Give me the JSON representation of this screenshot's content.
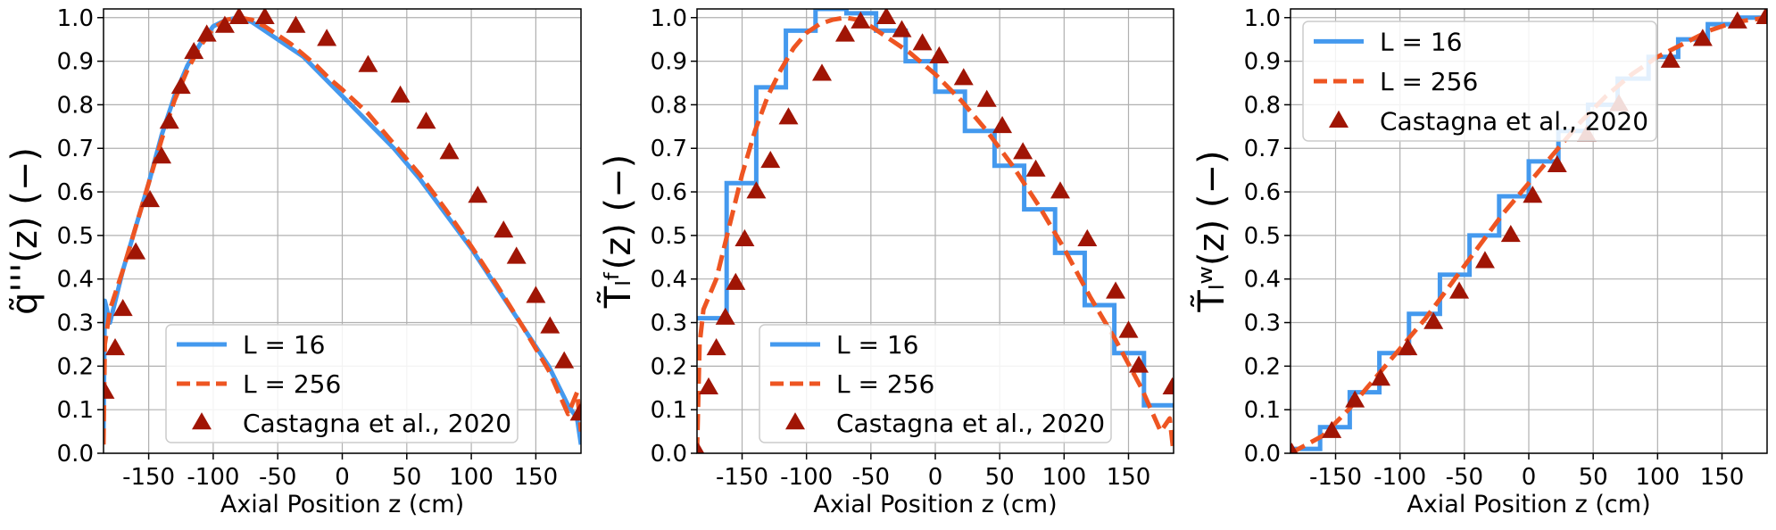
{
  "colors": {
    "l16": "#4499ee",
    "l256": "#ee5522",
    "castagna": "#a01505",
    "grid": "#b0b0b0"
  },
  "legend_labels": [
    "L = 16",
    "L = 256",
    "Castagna et al., 2020"
  ],
  "chart_data": [
    {
      "type": "line",
      "xlabel": "Axial Position z (cm)",
      "ylabel": "q̃'''(z) (−)",
      "xlim": [
        -185,
        185
      ],
      "ylim": [
        0,
        1.02
      ],
      "xticks": [
        "-150",
        "-100",
        "-50",
        "0",
        "50",
        "100",
        "150"
      ],
      "yticks": [
        "0.0",
        "0.1",
        "0.2",
        "0.3",
        "0.4",
        "0.5",
        "0.6",
        "0.7",
        "0.8",
        "0.9",
        "1.0"
      ],
      "grid": true,
      "legend_position": "lower-center",
      "series": [
        {
          "name": "L = 16",
          "style": "solid",
          "x": [
            -185,
            -184,
            -180,
            -170,
            -160,
            -150,
            -140,
            -130,
            -120,
            -110,
            -100,
            -90,
            -80,
            -70,
            -60,
            -50,
            -40,
            -30,
            -20,
            -10,
            0,
            20,
            40,
            60,
            80,
            100,
            120,
            140,
            160,
            175,
            182,
            185
          ],
          "y": [
            0.05,
            0.35,
            0.3,
            0.42,
            0.52,
            0.62,
            0.73,
            0.82,
            0.89,
            0.94,
            0.98,
            0.995,
            1.0,
            0.99,
            0.97,
            0.95,
            0.93,
            0.91,
            0.88,
            0.85,
            0.82,
            0.76,
            0.7,
            0.63,
            0.55,
            0.47,
            0.38,
            0.29,
            0.2,
            0.11,
            0.08,
            0.02
          ]
        },
        {
          "name": "L = 256",
          "style": "dashed",
          "x": [
            -185,
            -184,
            -180,
            -170,
            -160,
            -150,
            -140,
            -130,
            -120,
            -110,
            -100,
            -90,
            -80,
            -70,
            -60,
            -50,
            -40,
            -30,
            -20,
            -10,
            0,
            20,
            40,
            60,
            80,
            100,
            120,
            140,
            160,
            175,
            182,
            185
          ],
          "y": [
            0.02,
            0.25,
            0.33,
            0.42,
            0.52,
            0.62,
            0.72,
            0.81,
            0.88,
            0.935,
            0.975,
            0.995,
            1.0,
            0.995,
            0.98,
            0.96,
            0.94,
            0.915,
            0.89,
            0.86,
            0.835,
            0.78,
            0.71,
            0.64,
            0.56,
            0.475,
            0.385,
            0.29,
            0.19,
            0.09,
            0.14,
            0.05
          ]
        },
        {
          "name": "Castagna et al., 2020",
          "style": "markers",
          "x": [
            -184,
            -176,
            -170,
            -160,
            -149,
            -140,
            -134,
            -125,
            -115,
            -105,
            -91,
            -80,
            -60,
            -36,
            -12,
            20,
            45,
            65,
            83,
            105,
            125,
            135,
            150,
            161,
            172,
            184
          ],
          "y": [
            0.14,
            0.24,
            0.33,
            0.46,
            0.58,
            0.68,
            0.76,
            0.84,
            0.92,
            0.96,
            0.98,
            1.0,
            1.0,
            0.98,
            0.95,
            0.89,
            0.82,
            0.76,
            0.69,
            0.59,
            0.51,
            0.45,
            0.36,
            0.29,
            0.21,
            0.09
          ]
        }
      ]
    },
    {
      "type": "line",
      "xlabel": "Axial Position z (cm)",
      "ylabel": "T̃ₗᶠ(z) (−)",
      "xlim": [
        -185,
        185
      ],
      "ylim": [
        0,
        1.02
      ],
      "xticks": [
        "-150",
        "-100",
        "-50",
        "0",
        "50",
        "100",
        "150"
      ],
      "yticks": [
        "0.0",
        "0.1",
        "0.2",
        "0.3",
        "0.4",
        "0.5",
        "0.6",
        "0.7",
        "0.8",
        "0.9",
        "1.0"
      ],
      "grid": true,
      "legend_position": "lower-center",
      "series": [
        {
          "name": "L = 16",
          "style": "step",
          "edges": [
            -185,
            -162,
            -139,
            -116,
            -93,
            -69,
            -46,
            -23,
            0,
            23,
            46,
            69,
            93,
            116,
            139,
            162,
            185
          ],
          "y": [
            0.31,
            0.62,
            0.84,
            0.97,
            1.02,
            1.01,
            0.97,
            0.9,
            0.83,
            0.74,
            0.66,
            0.56,
            0.46,
            0.34,
            0.23,
            0.11
          ]
        },
        {
          "name": "L = 256",
          "style": "dashed",
          "x": [
            -185,
            -183,
            -180,
            -170,
            -160,
            -150,
            -140,
            -130,
            -120,
            -110,
            -100,
            -90,
            -80,
            -70,
            -60,
            -50,
            -40,
            -30,
            -20,
            -10,
            0,
            20,
            40,
            60,
            80,
            100,
            120,
            140,
            160,
            175,
            182,
            185
          ],
          "y": [
            0.0,
            0.25,
            0.33,
            0.4,
            0.52,
            0.64,
            0.74,
            0.82,
            0.88,
            0.93,
            0.965,
            0.985,
            0.995,
            1.0,
            0.995,
            0.98,
            0.96,
            0.94,
            0.92,
            0.895,
            0.87,
            0.81,
            0.74,
            0.66,
            0.57,
            0.47,
            0.36,
            0.26,
            0.15,
            0.05,
            0.08,
            0.0
          ]
        },
        {
          "name": "Castagna et al., 2020",
          "style": "markers",
          "x": [
            -184,
            -176,
            -170,
            -163,
            -155,
            -148,
            -139,
            -128,
            -114,
            -88,
            -70,
            -58,
            -38,
            -26,
            -10,
            3,
            22,
            40,
            52,
            68,
            78,
            97,
            118,
            140,
            150,
            158,
            184
          ],
          "y": [
            0.0,
            0.15,
            0.24,
            0.31,
            0.39,
            0.49,
            0.6,
            0.67,
            0.77,
            0.87,
            0.96,
            0.99,
            1.0,
            0.97,
            0.94,
            0.91,
            0.86,
            0.81,
            0.75,
            0.69,
            0.65,
            0.6,
            0.49,
            0.37,
            0.28,
            0.2,
            0.15
          ]
        }
      ]
    },
    {
      "type": "line",
      "xlabel": "Axial Position z (cm)",
      "ylabel": "T̃ₗʷ(z) (−)",
      "xlim": [
        -185,
        185
      ],
      "ylim": [
        0,
        1.02
      ],
      "xticks": [
        "-150",
        "-100",
        "-50",
        "0",
        "50",
        "100",
        "150"
      ],
      "yticks": [
        "0.0",
        "0.1",
        "0.2",
        "0.3",
        "0.4",
        "0.5",
        "0.6",
        "0.7",
        "0.8",
        "0.9",
        "1.0"
      ],
      "grid": true,
      "legend_position": "upper-left",
      "series": [
        {
          "name": "L = 16",
          "style": "step",
          "edges": [
            -185,
            -162,
            -139,
            -116,
            -93,
            -69,
            -46,
            -23,
            0,
            23,
            46,
            69,
            93,
            116,
            139,
            162,
            185
          ],
          "y": [
            0.01,
            0.06,
            0.14,
            0.23,
            0.32,
            0.41,
            0.5,
            0.59,
            0.67,
            0.74,
            0.8,
            0.86,
            0.91,
            0.95,
            0.985,
            1.0
          ]
        },
        {
          "name": "L = 256",
          "style": "dashed",
          "x": [
            -185,
            -160,
            -140,
            -120,
            -100,
            -80,
            -60,
            -40,
            -20,
            0,
            20,
            40,
            60,
            80,
            100,
            120,
            140,
            160,
            185
          ],
          "y": [
            0.0,
            0.04,
            0.1,
            0.17,
            0.24,
            0.31,
            0.39,
            0.47,
            0.55,
            0.62,
            0.69,
            0.76,
            0.82,
            0.87,
            0.91,
            0.94,
            0.97,
            0.99,
            1.0
          ]
        },
        {
          "name": "Castagna et al., 2020",
          "style": "markers",
          "x": [
            -184,
            -153,
            -135,
            -115,
            -94,
            -74,
            -54,
            -34,
            -14,
            3,
            22,
            45,
            70,
            110,
            135,
            162,
            184
          ],
          "y": [
            0.0,
            0.05,
            0.12,
            0.17,
            0.24,
            0.3,
            0.37,
            0.44,
            0.5,
            0.59,
            0.66,
            0.73,
            0.8,
            0.9,
            0.95,
            0.99,
            1.0
          ]
        }
      ]
    }
  ]
}
